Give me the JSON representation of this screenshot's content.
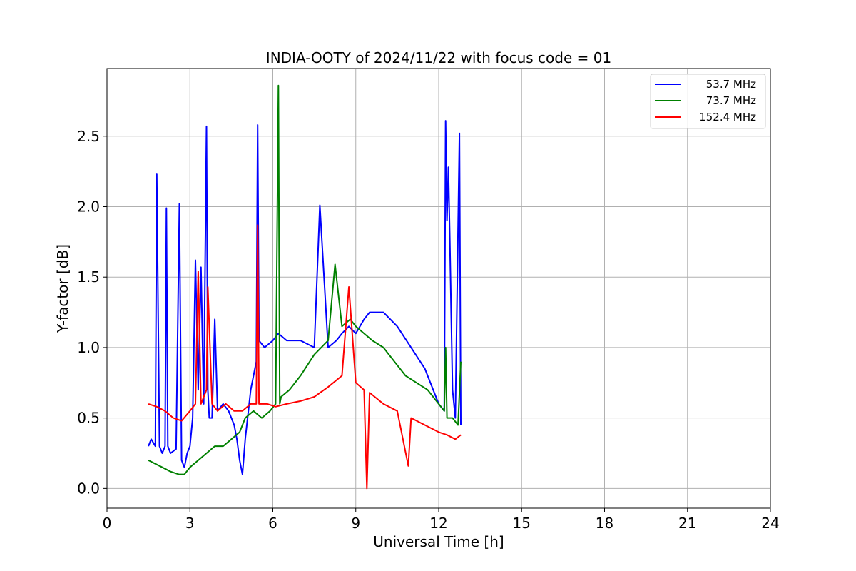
{
  "chart_data": {
    "type": "line",
    "title": "INDIA-OOTY of 2024/11/22 with focus code = 01",
    "xlabel": "Universal Time [h]",
    "ylabel": "Y-factor [dB]",
    "xlim": [
      0,
      24
    ],
    "ylim": [
      -0.14,
      2.98
    ],
    "xticks": [
      0,
      3,
      6,
      9,
      12,
      15,
      18,
      21,
      24
    ],
    "yticks": [
      0.0,
      0.5,
      1.0,
      1.5,
      2.0,
      2.5
    ],
    "ytick_labels": [
      "0.0",
      "0.5",
      "1.0",
      "1.5",
      "2.0",
      "2.5"
    ],
    "grid": true,
    "legend_position": "top-right",
    "series": [
      {
        "name": "53.7 MHz",
        "color": "#0000ff",
        "x": [
          1.5,
          1.6,
          1.75,
          1.8,
          1.9,
          2.0,
          2.1,
          2.15,
          2.2,
          2.3,
          2.5,
          2.62,
          2.7,
          2.8,
          2.9,
          3.0,
          3.1,
          3.2,
          3.3,
          3.4,
          3.5,
          3.6,
          3.65,
          3.7,
          3.8,
          3.9,
          4.0,
          4.2,
          4.4,
          4.6,
          4.7,
          4.8,
          4.9,
          5.0,
          5.2,
          5.4,
          5.45,
          5.5,
          5.7,
          6.0,
          6.2,
          6.5,
          7.0,
          7.5,
          7.7,
          8.0,
          8.3,
          8.5,
          8.75,
          9.0,
          9.3,
          9.5,
          10.0,
          10.5,
          11.0,
          11.5,
          12.0,
          12.2,
          12.25,
          12.3,
          12.35,
          12.4,
          12.5,
          12.6,
          12.75,
          12.8
        ],
        "y": [
          0.3,
          0.35,
          0.3,
          2.23,
          0.3,
          0.25,
          0.3,
          1.99,
          0.3,
          0.25,
          0.28,
          2.02,
          0.2,
          0.15,
          0.25,
          0.3,
          0.5,
          1.62,
          0.7,
          1.57,
          0.6,
          2.57,
          0.7,
          0.5,
          0.5,
          1.2,
          0.55,
          0.6,
          0.55,
          0.45,
          0.35,
          0.2,
          0.1,
          0.35,
          0.7,
          0.9,
          2.58,
          1.05,
          1.0,
          1.05,
          1.1,
          1.05,
          1.05,
          1.0,
          2.01,
          1.0,
          1.05,
          1.1,
          1.15,
          1.1,
          1.2,
          1.25,
          1.25,
          1.15,
          1.0,
          0.85,
          0.6,
          0.55,
          2.61,
          1.9,
          2.28,
          1.8,
          0.7,
          0.5,
          2.52,
          0.45
        ]
      },
      {
        "name": "73.7 MHz",
        "color": "#008000",
        "x": [
          1.5,
          1.7,
          2.0,
          2.3,
          2.6,
          2.8,
          3.0,
          3.3,
          3.6,
          3.9,
          4.2,
          4.5,
          4.8,
          5.0,
          5.3,
          5.6,
          5.9,
          6.1,
          6.2,
          6.25,
          6.3,
          6.6,
          7.0,
          7.5,
          8.0,
          8.25,
          8.5,
          8.8,
          9.0,
          9.3,
          9.6,
          10.0,
          10.4,
          10.8,
          11.2,
          11.6,
          12.0,
          12.2,
          12.25,
          12.3,
          12.5,
          12.7,
          12.8
        ],
        "y": [
          0.2,
          0.18,
          0.15,
          0.12,
          0.1,
          0.1,
          0.15,
          0.2,
          0.25,
          0.3,
          0.3,
          0.35,
          0.4,
          0.5,
          0.55,
          0.5,
          0.55,
          0.6,
          2.86,
          0.6,
          0.65,
          0.7,
          0.8,
          0.95,
          1.05,
          1.59,
          1.15,
          1.2,
          1.15,
          1.1,
          1.05,
          1.0,
          0.9,
          0.8,
          0.75,
          0.7,
          0.6,
          0.55,
          1.0,
          0.5,
          0.5,
          0.45,
          0.9
        ]
      },
      {
        "name": "152.4 MHz",
        "color": "#ff0000",
        "x": [
          1.5,
          1.8,
          2.1,
          2.4,
          2.7,
          3.0,
          3.2,
          3.3,
          3.4,
          3.6,
          3.65,
          3.8,
          4.0,
          4.3,
          4.6,
          4.9,
          5.2,
          5.4,
          5.45,
          5.5,
          5.8,
          6.1,
          6.5,
          7.0,
          7.5,
          8.0,
          8.5,
          8.75,
          9.0,
          9.3,
          9.4,
          9.5,
          10.0,
          10.5,
          10.9,
          11.0,
          11.5,
          12.0,
          12.3,
          12.6,
          12.8
        ],
        "y": [
          0.6,
          0.58,
          0.55,
          0.5,
          0.48,
          0.55,
          0.6,
          1.54,
          0.6,
          0.7,
          1.43,
          0.6,
          0.55,
          0.6,
          0.55,
          0.55,
          0.6,
          0.6,
          1.87,
          0.6,
          0.6,
          0.58,
          0.6,
          0.62,
          0.65,
          0.72,
          0.8,
          1.43,
          0.75,
          0.7,
          0.0,
          0.68,
          0.6,
          0.55,
          0.16,
          0.5,
          0.45,
          0.4,
          0.38,
          0.35,
          0.38
        ]
      }
    ]
  }
}
